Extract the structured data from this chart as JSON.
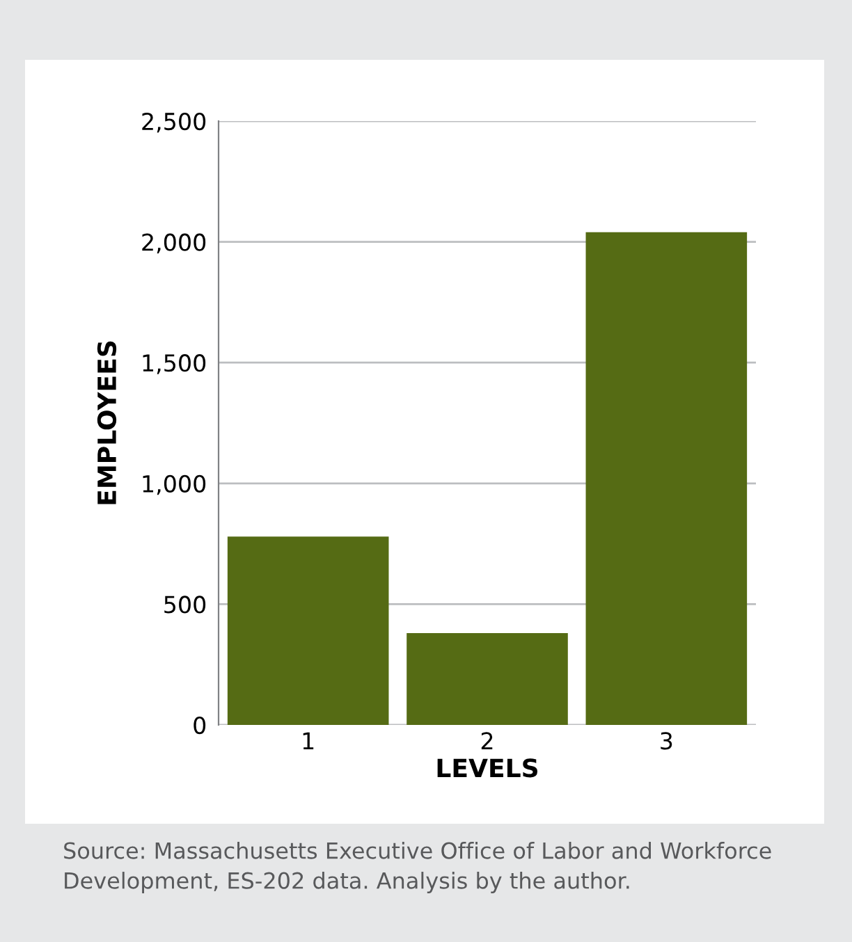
{
  "chart_data": {
    "type": "bar",
    "xlabel": "LEVELS",
    "ylabel": "EMPLOYEES",
    "categories": [
      "1",
      "2",
      "3"
    ],
    "values": [
      780,
      380,
      2040
    ],
    "color": "#556b14",
    "ylim": [
      0,
      2500
    ],
    "yticks": [
      0,
      500,
      {
        "value": 1000,
        "label": "1,000"
      },
      {
        "value": 1500,
        "label": "1,500"
      },
      {
        "value": 2000,
        "label": "2,000"
      },
      {
        "value": 2500,
        "label": "2,500"
      }
    ],
    "grid": "y",
    "annotations": [
      "Source: Massachusetts Executive Office of Labor and Workforce Development, ES-202 data. Analysis by the author."
    ]
  }
}
